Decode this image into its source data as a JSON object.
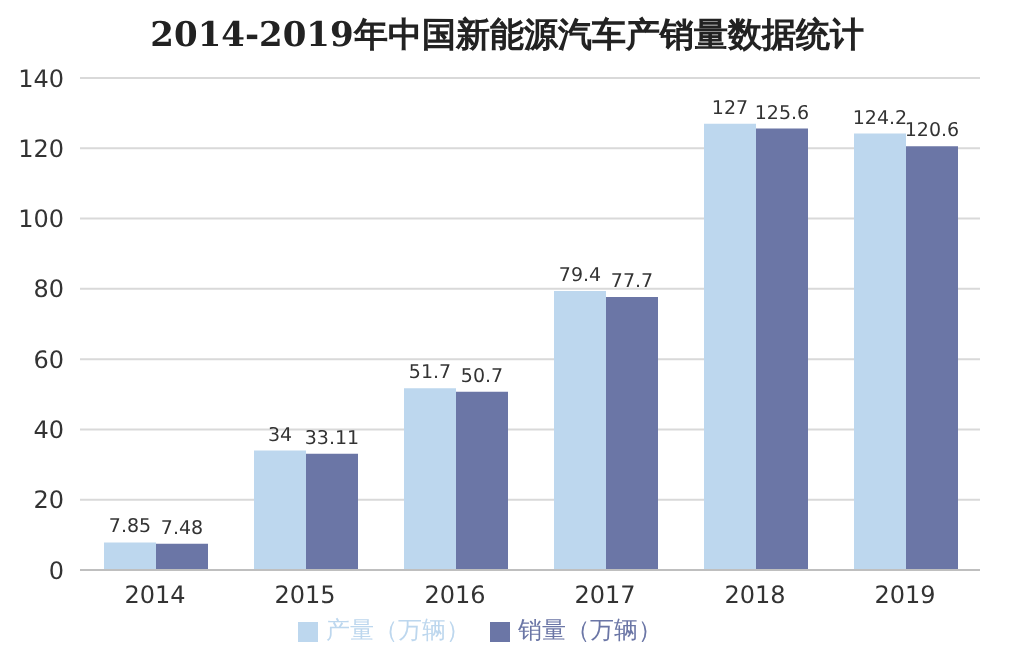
{
  "chart_data": {
    "type": "bar",
    "title": "2014-2019年中国新能源汽车产销量数据统计",
    "categories": [
      "2014",
      "2015",
      "2016",
      "2017",
      "2018",
      "2019"
    ],
    "series": [
      {
        "name": "产量（万辆）",
        "color": "#bdd7ee",
        "values": [
          7.85,
          34,
          51.7,
          79.4,
          127,
          124.2
        ]
      },
      {
        "name": "销量（万辆）",
        "color": "#6b76a6",
        "values": [
          7.48,
          33.11,
          50.7,
          77.7,
          125.6,
          120.6
        ]
      }
    ],
    "ylim": [
      0,
      140
    ],
    "yticks": [
      0,
      20,
      40,
      60,
      80,
      100,
      120,
      140
    ],
    "grid": "y",
    "legend": "bottom",
    "data_labels": true
  }
}
